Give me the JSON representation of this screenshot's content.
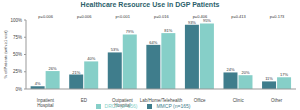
{
  "chart_data": {
    "type": "bar",
    "title": "Healthcare Resource Use in DGP Patients",
    "y_label": "% of Patients (with ≥1 visit)",
    "categories": [
      "Inpatient Hospital",
      "ED",
      "Outpatient Hospital",
      "Lab/Home/Telehealth",
      "Office",
      "Clinic",
      "Other"
    ],
    "series": [
      {
        "name": "MMCP (n=165)",
        "color": "#3f7d8c",
        "values": [
          4,
          21,
          53,
          64,
          93,
          24,
          11
        ],
        "value_labels": [
          "4%",
          "21%",
          "53%",
          "64%",
          "93%",
          "24%",
          "11%"
        ]
      },
      {
        "name": "DRCP (n=156)",
        "color": "#86cfc8",
        "values": [
          26,
          40,
          79,
          81,
          95,
          20,
          17
        ],
        "value_labels": [
          "26%",
          "40%",
          "79%",
          "81%",
          "95%",
          "20%",
          "17%"
        ]
      }
    ],
    "annotations": [
      "p=0.006",
      "p=0.006",
      "p<0.001",
      "p=0.016",
      "p=0.406",
      "p=0.413",
      "p=0.173"
    ],
    "ylim": [
      0,
      100
    ],
    "yticks": [
      {
        "value": 0,
        "label": "0%"
      },
      {
        "value": 25,
        "label": "25%"
      },
      {
        "value": 50,
        "label": "50%"
      },
      {
        "value": 75,
        "label": "75%"
      },
      {
        "value": 100,
        "label": "100%"
      }
    ],
    "grid": false,
    "legend": "bottom",
    "data_labels": true
  }
}
